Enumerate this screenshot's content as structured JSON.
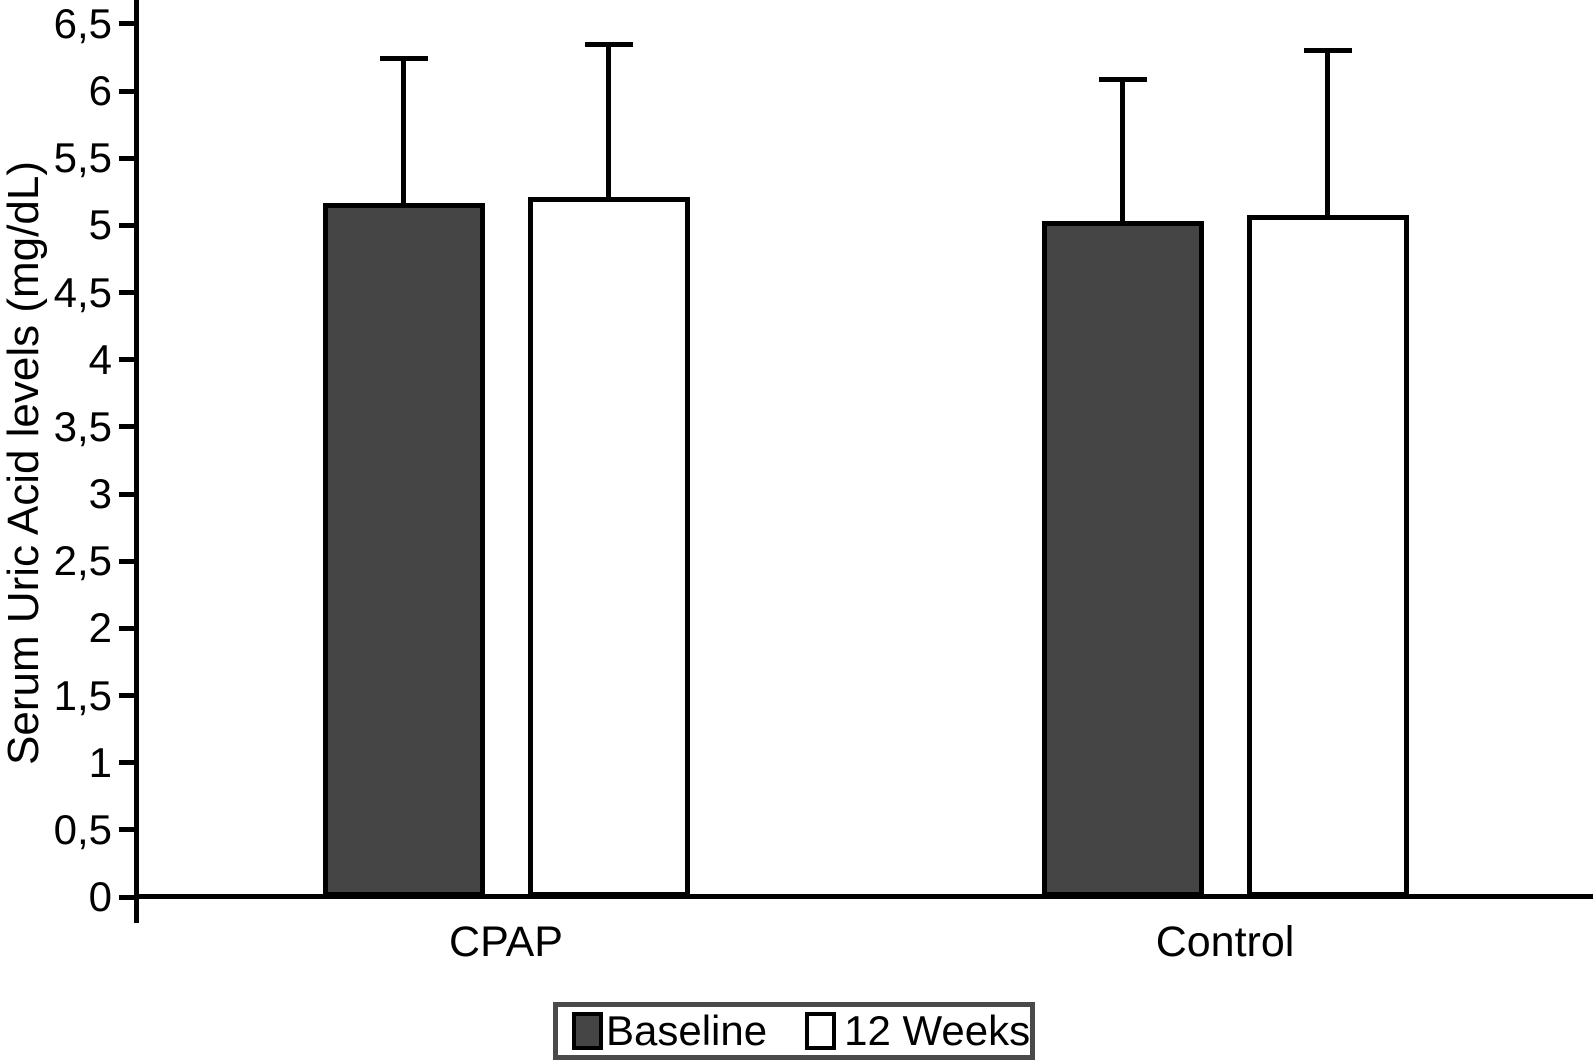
{
  "figure": {
    "background": "#ffffff",
    "axis_color": "#000000",
    "legend_border_color": "#4a4a4a"
  },
  "chart_data": {
    "type": "bar",
    "title": "",
    "xlabel": "",
    "ylabel": "Serum Uric Acid levels (mg/dL)",
    "categories": [
      "CPAP",
      "Control"
    ],
    "series": [
      {
        "name": "Baseline",
        "color": "#454545",
        "values": [
          5.17,
          5.03
        ],
        "error_plus": [
          1.08,
          1.06
        ]
      },
      {
        "name": "12 Weeks",
        "color": "#ffffff",
        "values": [
          5.21,
          5.08
        ],
        "error_plus": [
          1.14,
          1.23
        ]
      }
    ],
    "ylim": [
      0,
      6.65
    ],
    "ytick_step": 0.5,
    "ytick_values": [
      0,
      0.5,
      1,
      1.5,
      2,
      2.5,
      3,
      3.5,
      4,
      4.5,
      5,
      5.5,
      6,
      6.5
    ],
    "ytick_labels": [
      "0",
      "0,5",
      "1",
      "1,5",
      "2",
      "2,5",
      "3",
      "3,5",
      "4",
      "4,5",
      "5",
      "5,5",
      "6",
      "6,5"
    ],
    "decimal_separator": ",",
    "grid": false,
    "error_bars": "upper_sd_with_caps",
    "legend_position": "bottom-center"
  }
}
